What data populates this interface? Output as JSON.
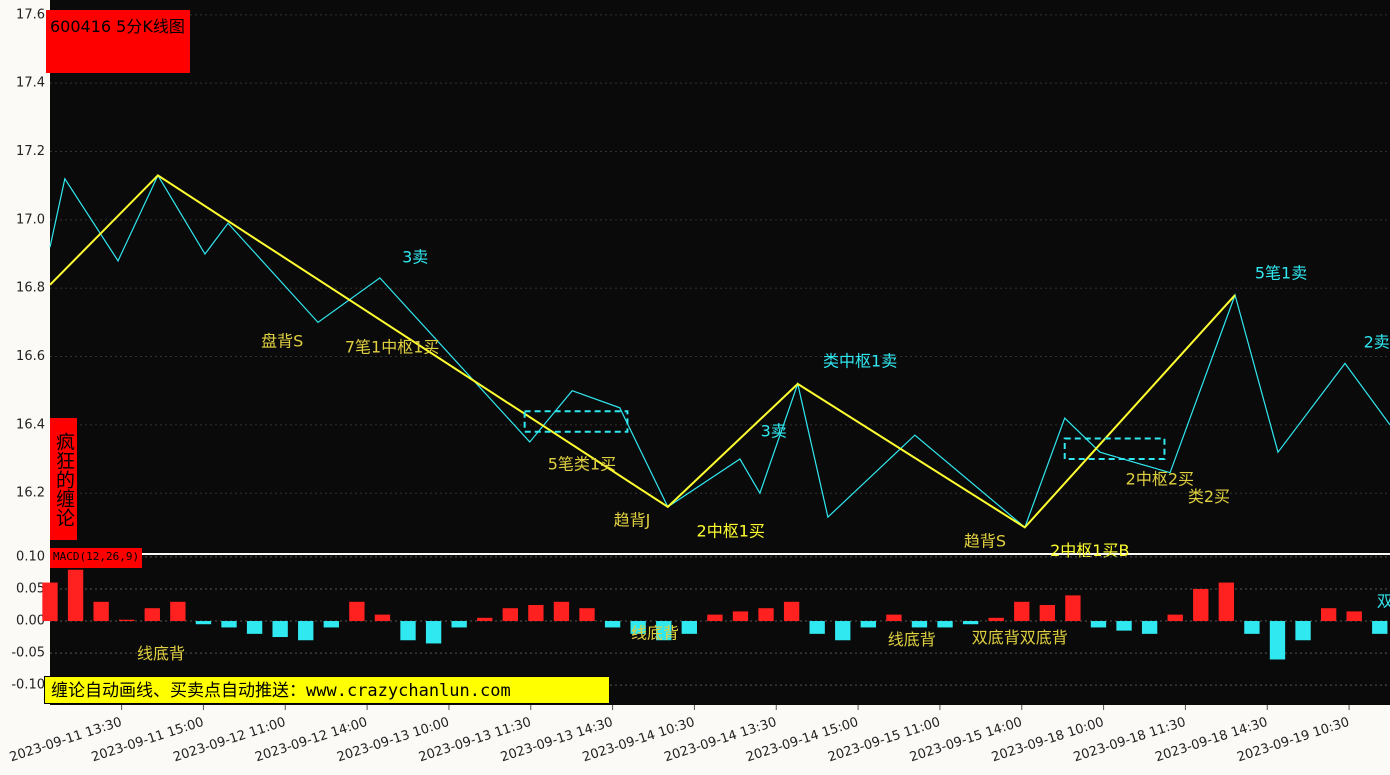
{
  "title": "600416 5分K线图",
  "side_label": "疯狂的缠论",
  "banner": "缠论自动画线、买卖点自动推送：www.crazychanlun.com",
  "chart_data": [
    {
      "type": "line",
      "xlim": [
        0,
        262
      ],
      "xticks": [
        {
          "value": 14,
          "label": "2023-09-11 13:30"
        },
        {
          "value": 30,
          "label": "2023-09-11 15:00"
        },
        {
          "value": 46,
          "label": "2023-09-12 11:00"
        },
        {
          "value": 62,
          "label": "2023-09-12 14:00"
        },
        {
          "value": 78,
          "label": "2023-09-13 10:00"
        },
        {
          "value": 94,
          "label": "2023-09-13 11:30"
        },
        {
          "value": 110,
          "label": "2023-09-13 14:30"
        },
        {
          "value": 126,
          "label": "2023-09-14 10:30"
        },
        {
          "value": 142,
          "label": "2023-09-14 13:30"
        },
        {
          "value": 158,
          "label": "2023-09-14 15:00"
        },
        {
          "value": 174,
          "label": "2023-09-15 11:00"
        },
        {
          "value": 190,
          "label": "2023-09-15 14:00"
        },
        {
          "value": 206,
          "label": "2023-09-18 10:00"
        },
        {
          "value": 222,
          "label": "2023-09-18 11:30"
        },
        {
          "value": 238,
          "label": "2023-09-18 14:30"
        },
        {
          "value": 254,
          "label": "2023-09-19 10:30"
        }
      ],
      "ylim": [
        16.025,
        17.62
      ],
      "yticks": [
        {
          "value": 16.2,
          "label": "16.2"
        },
        {
          "value": 16.4,
          "label": "16.4"
        },
        {
          "value": 16.6,
          "label": "16.6"
        },
        {
          "value": 16.8,
          "label": "16.8"
        },
        {
          "value": 17,
          "label": "17.0"
        },
        {
          "value": 17.2,
          "label": "17.2"
        },
        {
          "value": 17.4,
          "label": "17.4"
        },
        {
          "value": 17.6,
          "label": "17.6"
        }
      ],
      "grid": true,
      "series": [
        {
          "color": "#30e8f0",
          "x": [
            0,
            2.9,
            13.3,
            21.1,
            30.3,
            34.8,
            52.4,
            64.5,
            93.8,
            102.1,
            111.4,
            120.8,
            134.9,
            138.8,
            146.2,
            152.1,
            169.1,
            190.6,
            198.4,
            205.3,
            219,
            231.7,
            240.1,
            253.2,
            262
          ],
          "values": [
            16.92,
            17.12,
            16.88,
            17.13,
            16.9,
            16.99,
            16.7,
            16.83,
            16.35,
            16.5,
            16.45,
            16.16,
            16.3,
            16.2,
            16.52,
            16.13,
            16.37,
            16.1,
            16.42,
            16.32,
            16.26,
            16.78,
            16.32,
            16.58,
            16.4
          ]
        },
        {
          "color": "#ffff30",
          "x": [
            0,
            21.1,
            120.8,
            146.2,
            190.6,
            231.7
          ],
          "values": [
            16.81,
            17.13,
            16.16,
            16.52,
            16.1,
            16.78
          ]
        }
      ],
      "boxes": [
        {
          "x": [
            92.8,
            112.9
          ],
          "y": [
            16.38,
            16.44
          ]
        },
        {
          "x": [
            198.4,
            217.9
          ],
          "y": [
            16.3,
            16.36
          ]
        }
      ],
      "box_color": "#30e8f0",
      "annotations": [
        {
          "text": "3卖",
          "x": 71.4,
          "y": 16.888,
          "color": "#30e8f0"
        },
        {
          "text": "盘背S",
          "x": 45.4,
          "y": 16.642,
          "color": "#e0d040"
        },
        {
          "text": "7笔1中枢1买",
          "x": 66.9,
          "y": 16.625,
          "color": "#e0d040"
        },
        {
          "text": "5笔类1买",
          "x": 104,
          "y": 16.282,
          "color": "#e0d040"
        },
        {
          "text": "趋背J",
          "x": 113.8,
          "y": 16.118,
          "color": "#e0d040"
        },
        {
          "text": "2中枢1买",
          "x": 133.1,
          "y": 16.086,
          "color": "#ffff30"
        },
        {
          "text": "3卖",
          "x": 141.5,
          "y": 16.379,
          "color": "#30e8f0"
        },
        {
          "text": "类中枢1卖",
          "x": 158.4,
          "y": 16.584,
          "color": "#30e8f0"
        },
        {
          "text": "趋背S",
          "x": 182.8,
          "y": 16.057,
          "color": "#e0d040"
        },
        {
          "text": "2中枢1买B",
          "x": 203.3,
          "y": 16.03,
          "color": "#ffff30"
        },
        {
          "text": "2中枢2买",
          "x": 217,
          "y": 16.238,
          "color": "#e0d040"
        },
        {
          "text": "类2买",
          "x": 226.6,
          "y": 16.188,
          "color": "#e0d040"
        },
        {
          "text": "5笔1卖",
          "x": 240.7,
          "y": 16.842,
          "color": "#30e8f0"
        },
        {
          "text": "2卖",
          "x": 259.4,
          "y": 16.64,
          "color": "#30e8f0"
        }
      ]
    },
    {
      "type": "bar",
      "title": "MACD(12,26,9)",
      "xlim": [
        0,
        262
      ],
      "ylim": [
        -0.131,
        0.103
      ],
      "yticks": [
        {
          "value": -0.1,
          "label": "-0.10"
        },
        {
          "value": -0.05,
          "label": "-0.05"
        },
        {
          "value": 0,
          "label": "0.00"
        },
        {
          "value": 0.05,
          "label": "0.05"
        },
        {
          "value": 0.1,
          "label": "0.10"
        }
      ],
      "up_color": "#ff2020",
      "down_color": "#30e8f0",
      "x": [
        0,
        5,
        10,
        15,
        20,
        25,
        30,
        35,
        40,
        45,
        50,
        55,
        60,
        65,
        70,
        75,
        80,
        85,
        90,
        95,
        100,
        105,
        110,
        115,
        120,
        125,
        130,
        135,
        140,
        145,
        150,
        155,
        160,
        165,
        170,
        175,
        180,
        185,
        190,
        195,
        200,
        205,
        210,
        215,
        220,
        225,
        230,
        235,
        240,
        245,
        250,
        255,
        260
      ],
      "values": [
        0.06,
        0.08,
        0.03,
        0.002,
        0.02,
        0.03,
        -0.005,
        -0.01,
        -0.02,
        -0.025,
        -0.03,
        -0.01,
        0.03,
        0.01,
        -0.03,
        -0.035,
        -0.01,
        0.005,
        0.02,
        0.025,
        0.03,
        0.02,
        -0.01,
        -0.02,
        -0.03,
        -0.02,
        0.01,
        0.015,
        0.02,
        0.03,
        -0.02,
        -0.03,
        -0.01,
        0.01,
        -0.01,
        -0.01,
        -0.005,
        0.005,
        0.03,
        0.025,
        0.04,
        -0.01,
        -0.015,
        -0.02,
        0.01,
        0.05,
        0.06,
        -0.02,
        -0.06,
        -0.03,
        0.02,
        0.015,
        -0.02
      ],
      "annotations": [
        {
          "text": "线底背",
          "x": 21.7,
          "y": -0.052,
          "color": "#e0d040"
        },
        {
          "text": "线底背",
          "x": 118.3,
          "y": -0.02,
          "color": "#e0d040"
        },
        {
          "text": "线底背",
          "x": 168.5,
          "y": -0.03,
          "color": "#e0d040"
        },
        {
          "text": "双底背双底背",
          "x": 189.6,
          "y": -0.027,
          "color": "#e0d040"
        },
        {
          "text": "双",
          "x": 261,
          "y": 0.03,
          "color": "#30e8f0"
        }
      ]
    }
  ]
}
